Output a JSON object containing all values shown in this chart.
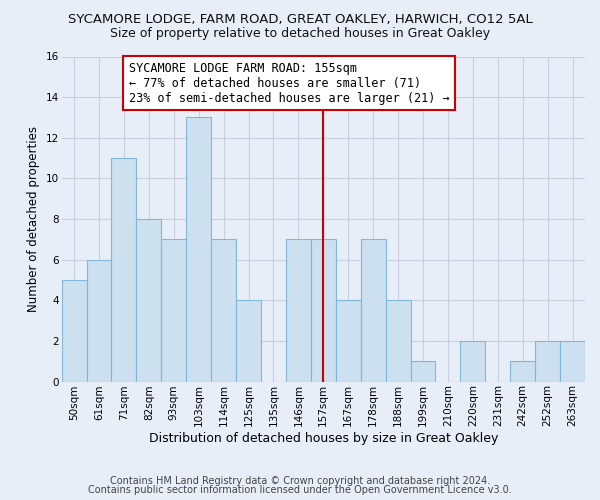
{
  "title": "SYCAMORE LODGE, FARM ROAD, GREAT OAKLEY, HARWICH, CO12 5AL",
  "subtitle": "Size of property relative to detached houses in Great Oakley",
  "xlabel": "Distribution of detached houses by size in Great Oakley",
  "ylabel": "Number of detached properties",
  "bar_labels": [
    "50sqm",
    "61sqm",
    "71sqm",
    "82sqm",
    "93sqm",
    "103sqm",
    "114sqm",
    "125sqm",
    "135sqm",
    "146sqm",
    "157sqm",
    "167sqm",
    "178sqm",
    "188sqm",
    "199sqm",
    "210sqm",
    "220sqm",
    "231sqm",
    "242sqm",
    "252sqm",
    "263sqm"
  ],
  "bar_values": [
    5,
    6,
    11,
    8,
    7,
    13,
    7,
    4,
    0,
    7,
    7,
    4,
    7,
    4,
    1,
    0,
    2,
    0,
    1,
    2,
    2
  ],
  "bar_color": "#cce0f0",
  "bar_edge_color": "#7fb8d8",
  "vline_x": 10,
  "vline_color": "#cc0000",
  "annotation_line1": "SYCAMORE LODGE FARM ROAD: 155sqm",
  "annotation_line2": "← 77% of detached houses are smaller (71)",
  "annotation_line3": "23% of semi-detached houses are larger (21) →",
  "annotation_box_color": "#ffffff",
  "annotation_box_edge": "#cc0000",
  "ylim": [
    0,
    16
  ],
  "yticks": [
    0,
    2,
    4,
    6,
    8,
    10,
    12,
    14,
    16
  ],
  "footer1": "Contains HM Land Registry data © Crown copyright and database right 2024.",
  "footer2": "Contains public sector information licensed under the Open Government Licence v3.0.",
  "bg_color": "#e8eef8",
  "plot_bg_color": "#e8eef8",
  "grid_color": "#c8d0e0",
  "title_fontsize": 9.5,
  "subtitle_fontsize": 9,
  "xlabel_fontsize": 9,
  "ylabel_fontsize": 8.5,
  "tick_fontsize": 7.5,
  "annotation_fontsize": 8.5,
  "footer_fontsize": 7
}
